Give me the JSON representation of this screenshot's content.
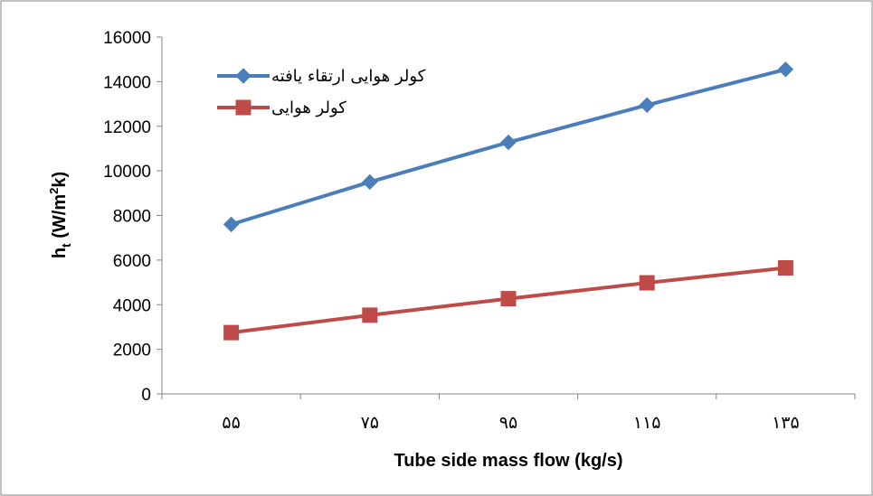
{
  "chart_data": {
    "type": "line",
    "categories": [
      "۵۵",
      "۷۵",
      "۹۵",
      "۱۱۵",
      "۱۳۵"
    ],
    "series": [
      {
        "name": "کولر هوایی ارتقاء یافته",
        "values": [
          7600,
          9500,
          11280,
          12950,
          14550
        ],
        "color": "#4a7ebb",
        "marker": "diamond"
      },
      {
        "name": "کولر هوایی",
        "values": [
          2750,
          3530,
          4270,
          4980,
          5650
        ],
        "color": "#be4b48",
        "marker": "square"
      }
    ],
    "ylim": [
      0,
      16000
    ],
    "yticks": [
      0,
      2000,
      4000,
      6000,
      8000,
      10000,
      12000,
      14000,
      16000
    ],
    "xlabel": "Tube side mass flow (kg/s)",
    "ylabel": {
      "main": "h",
      "sub": "t",
      "unit_pre": " (W/m",
      "sup": "2",
      "unit_post": "k)"
    },
    "grid": false,
    "legend_position": "top-left"
  }
}
